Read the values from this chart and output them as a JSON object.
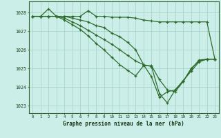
{
  "title": "Graphe pression niveau de la mer (hPa)",
  "background_color": "#cceee8",
  "grid_color": "#aad4cc",
  "line_color": "#2d6b2d",
  "xlim": [
    -0.5,
    23.5
  ],
  "ylim": [
    1022.6,
    1028.6
  ],
  "yticks": [
    1023,
    1024,
    1025,
    1026,
    1027,
    1028
  ],
  "xticks": [
    0,
    1,
    2,
    3,
    4,
    5,
    6,
    7,
    8,
    9,
    10,
    11,
    12,
    13,
    14,
    15,
    16,
    17,
    18,
    19,
    20,
    21,
    22,
    23
  ],
  "series": [
    [
      1027.8,
      1027.8,
      1028.2,
      1027.8,
      1027.8,
      1027.8,
      1027.8,
      1028.1,
      1027.8,
      1027.8,
      1027.75,
      1027.75,
      1027.75,
      1027.7,
      1027.6,
      1027.55,
      1027.5,
      1027.5,
      1027.5,
      1027.5,
      1027.5,
      1027.5,
      1027.5,
      1025.5
    ],
    [
      1027.8,
      1027.8,
      1027.8,
      1027.8,
      1027.8,
      1027.7,
      1027.6,
      1027.5,
      1027.3,
      1027.2,
      1026.9,
      1026.7,
      1026.4,
      1026.0,
      1025.2,
      1025.1,
      1023.65,
      1023.15,
      1023.85,
      1024.3,
      1025.0,
      1025.4,
      1025.5,
      1025.5
    ],
    [
      1027.8,
      1027.8,
      1027.8,
      1027.8,
      1027.7,
      1027.5,
      1027.3,
      1027.05,
      1026.8,
      1026.55,
      1026.3,
      1026.0,
      1025.7,
      1025.4,
      1025.2,
      1024.55,
      1023.45,
      1023.75,
      1023.85,
      1024.35,
      1024.85,
      1025.35,
      1025.5,
      1025.5
    ],
    [
      1027.8,
      1027.8,
      1027.8,
      1027.8,
      1027.6,
      1027.35,
      1027.1,
      1026.75,
      1026.35,
      1026.0,
      1025.6,
      1025.2,
      1024.9,
      1024.6,
      1025.15,
      1025.15,
      1024.4,
      1023.85,
      1023.75,
      1024.3,
      1024.95,
      1025.45,
      1025.5,
      1025.5
    ]
  ]
}
